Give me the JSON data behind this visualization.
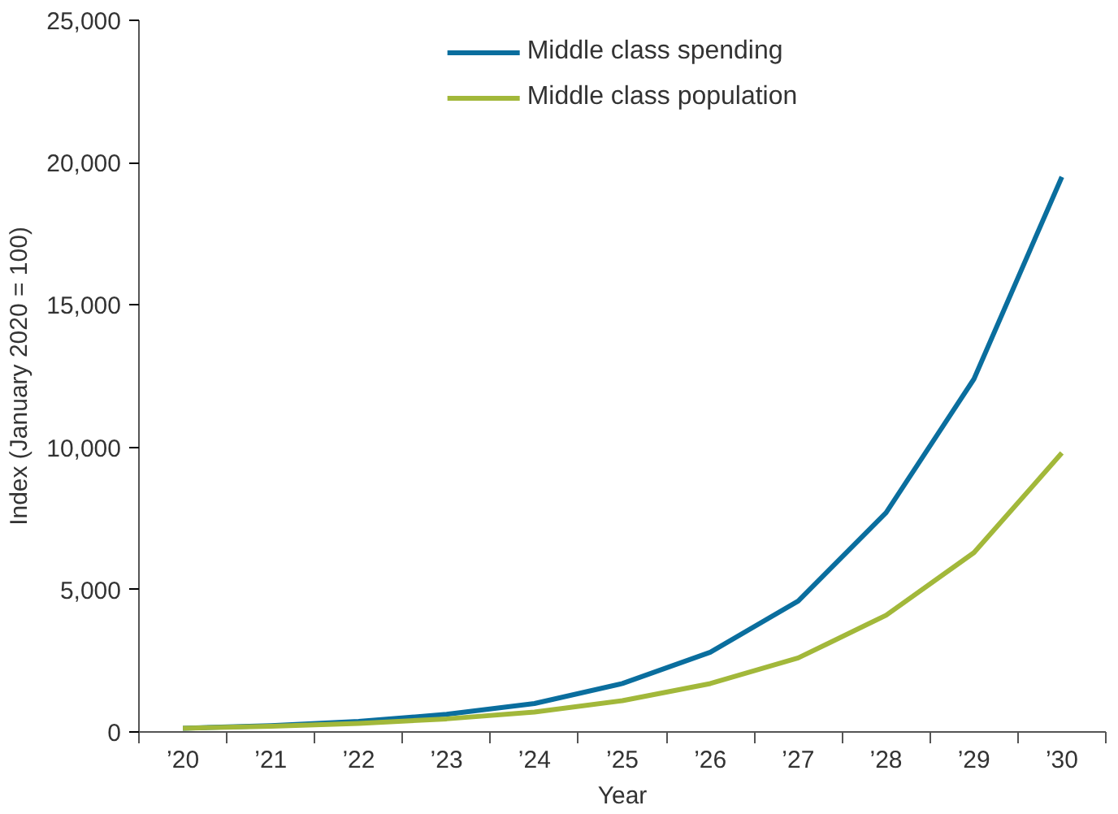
{
  "chart_data": {
    "type": "line",
    "xlabel": "Year",
    "ylabel": "Index (January 2020 = 100)",
    "ylim": [
      0,
      25000
    ],
    "yticks": [
      0,
      {
        "value": 5000,
        "label": "5,000"
      },
      {
        "value": 10000,
        "label": "10,000"
      },
      {
        "value": 15000,
        "label": "15,000"
      },
      {
        "value": 20000,
        "label": "20,000"
      },
      {
        "value": 25000,
        "label": "25,000"
      }
    ],
    "categories": [
      "’20",
      "’21",
      "’22",
      "’23",
      "’24",
      "’25",
      "’26",
      "’27",
      "’28",
      "’29",
      "’30"
    ],
    "series": [
      {
        "name": "Middle class spending",
        "color": "#0a6e9e",
        "values": [
          130,
          220,
          370,
          620,
          1000,
          1700,
          2800,
          4600,
          7700,
          12400,
          19500
        ]
      },
      {
        "name": "Middle class population",
        "color": "#a2b83a",
        "values": [
          130,
          200,
          300,
          460,
          700,
          1100,
          1700,
          2600,
          4100,
          6300,
          9800
        ]
      }
    ],
    "grid": false,
    "legend": "top",
    "line_style": "solid"
  }
}
